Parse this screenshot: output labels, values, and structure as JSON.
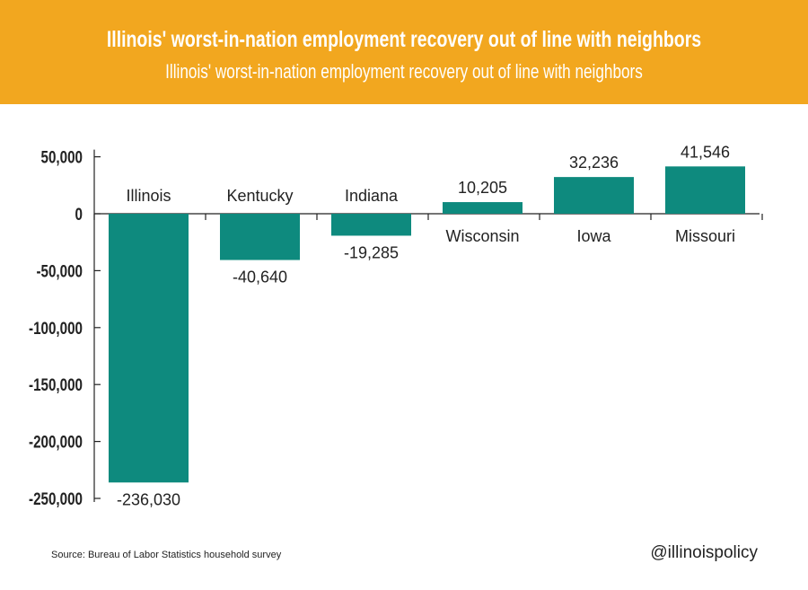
{
  "header": {
    "title": "Illinois' worst-in-nation employment recovery out of line with neighbors",
    "subtitle": "Illinois' worst-in-nation employment recovery out of line with neighbors"
  },
  "footer": {
    "source": "Source: Bureau of Labor Statistics household survey",
    "handle": "@illinoispolicy"
  },
  "colors": {
    "banner": "#f2a71f",
    "bar": "#0e8a7e",
    "axis": "#222222",
    "text": "#222222"
  },
  "chart_data": {
    "type": "bar",
    "title": "Illinois' worst-in-nation employment recovery out of line with neighbors",
    "xlabel": "",
    "ylabel": "",
    "categories": [
      "Illinois",
      "Kentucky",
      "Indiana",
      "Wisconsin",
      "Iowa",
      "Missouri"
    ],
    "values": [
      -236030,
      -40640,
      -19285,
      10205,
      32236,
      41546
    ],
    "value_labels": [
      "-236,030",
      "-40,640",
      "-19,285",
      "10,205",
      "32,236",
      "41,546"
    ],
    "ylim": [
      -250000,
      50000
    ],
    "yticks": [
      50000,
      0,
      -50000,
      -100000,
      -150000,
      -200000,
      -250000
    ],
    "ytick_labels": [
      "50,000",
      "0",
      "-50,000",
      "-100,000",
      "-150,000",
      "-200,000",
      "-250,000"
    ],
    "grid": false,
    "legend": "none"
  }
}
